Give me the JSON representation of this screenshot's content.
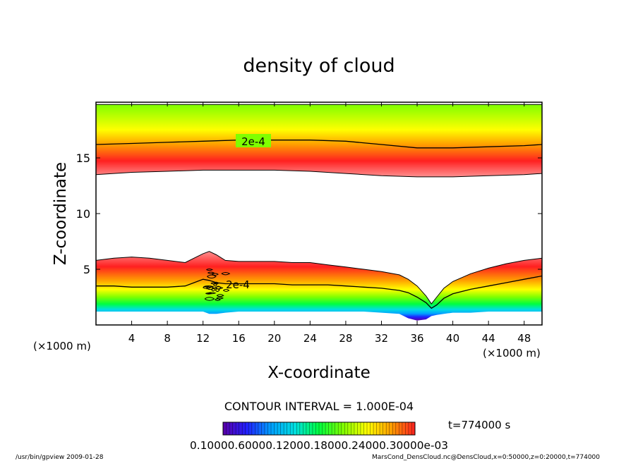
{
  "chart_data": {
    "type": "heatmap",
    "title": "density of cloud",
    "xlabel": "X-coordinate",
    "ylabel": "Z-coordinate",
    "x_unit_label": "(×1000 m)",
    "y_unit_label": "(×1000 m)",
    "xlim": [
      0,
      50
    ],
    "ylim": [
      0,
      20
    ],
    "x_ticks": [
      4,
      8,
      12,
      16,
      20,
      24,
      28,
      32,
      36,
      40,
      44,
      48
    ],
    "y_ticks": [
      5,
      10,
      15
    ],
    "contour_interval_text": "CONTOUR INTERVAL = 1.000E-04",
    "time_text": "t=774000 s",
    "colorbar_labels_text": "0.10000.60000.12000.18000.24000.30000e-03",
    "contour_label_upper": "2e-4",
    "contour_label_lower": "2e-4",
    "upper_layer": {
      "x": [
        0,
        4,
        8,
        12,
        16,
        20,
        24,
        28,
        32,
        36,
        40,
        44,
        48,
        50
      ],
      "top_km": [
        19.8,
        19.8,
        19.8,
        19.8,
        19.8,
        19.8,
        19.8,
        19.8,
        19.8,
        19.8,
        19.8,
        19.8,
        19.8,
        19.8
      ],
      "bottom_km": [
        13.5,
        13.7,
        13.8,
        13.9,
        13.9,
        13.9,
        13.8,
        13.6,
        13.4,
        13.3,
        13.3,
        13.4,
        13.5,
        13.6
      ],
      "contour_2e4_km": [
        16.2,
        16.3,
        16.4,
        16.5,
        16.6,
        16.6,
        16.6,
        16.5,
        16.2,
        15.9,
        15.9,
        16.0,
        16.1,
        16.2
      ]
    },
    "lower_layer": {
      "x": [
        0,
        2,
        4,
        6,
        8,
        10,
        11,
        12,
        12.7,
        13.5,
        14.5,
        16,
        18,
        20,
        22,
        24,
        26,
        28,
        30,
        32,
        34,
        35,
        36,
        37,
        37.6,
        38.2,
        39,
        40,
        42,
        44,
        46,
        48,
        50
      ],
      "top_km": [
        5.8,
        6.0,
        6.1,
        6.0,
        5.8,
        5.6,
        6.0,
        6.4,
        6.6,
        6.3,
        5.8,
        5.7,
        5.7,
        5.7,
        5.6,
        5.6,
        5.4,
        5.2,
        5.0,
        4.8,
        4.5,
        4.1,
        3.5,
        2.6,
        1.9,
        2.5,
        3.3,
        3.9,
        4.6,
        5.1,
        5.5,
        5.8,
        6.0
      ],
      "bottom_km": [
        1.2,
        1.2,
        1.2,
        1.2,
        1.2,
        1.2,
        1.2,
        1.2,
        1.0,
        1.0,
        1.1,
        1.2,
        1.2,
        1.2,
        1.2,
        1.2,
        1.2,
        1.2,
        1.2,
        1.1,
        1.0,
        0.6,
        0.4,
        0.5,
        0.8,
        0.9,
        1.0,
        1.1,
        1.1,
        1.2,
        1.2,
        1.2,
        1.2
      ],
      "contour_2e4_km": [
        3.5,
        3.5,
        3.4,
        3.4,
        3.4,
        3.5,
        3.8,
        4.1,
        4.0,
        3.8,
        3.7,
        3.7,
        3.7,
        3.7,
        3.6,
        3.6,
        3.6,
        3.5,
        3.4,
        3.3,
        3.1,
        2.9,
        2.5,
        2.0,
        1.5,
        1.8,
        2.4,
        2.8,
        3.2,
        3.5,
        3.8,
        4.1,
        4.4
      ]
    },
    "grid": false,
    "colormap": [
      "#5a00a8",
      "#2020ff",
      "#00a0ff",
      "#00e0e0",
      "#00ff40",
      "#80ff00",
      "#ffff00",
      "#ffa000",
      "#ff2020",
      "#ff9090",
      "#ffffff"
    ]
  },
  "footer": {
    "left": "/usr/bin/gpview  2009-01-28",
    "right": "MarsCond_DensCloud.nc@DensCloud,x=0:50000,z=0:20000,t=774000"
  }
}
